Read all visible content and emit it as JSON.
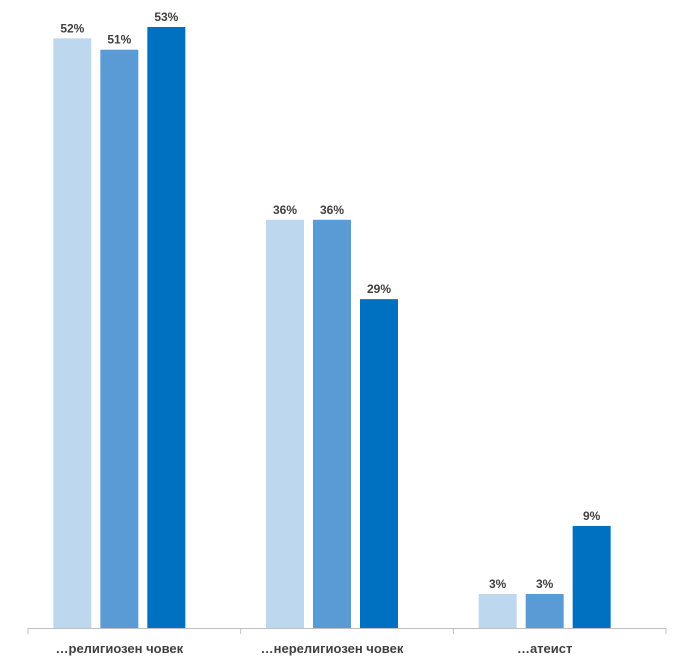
{
  "chart_data": {
    "type": "bar",
    "title": "",
    "xlabel": "",
    "ylabel": "",
    "categories": [
      "…религиозен човек",
      "…нерелигиозен човек",
      "…атеист"
    ],
    "series": [
      {
        "color": "#bdd7ee",
        "values": [
          52,
          36,
          3
        ]
      },
      {
        "color": "#5b9bd5",
        "values": [
          51,
          36,
          3
        ]
      },
      {
        "color": "#0070c0",
        "values": [
          53,
          29,
          9
        ]
      }
    ],
    "value_suffix": "%",
    "ylim": [
      0,
      53
    ],
    "grid": false,
    "legend": "none"
  }
}
